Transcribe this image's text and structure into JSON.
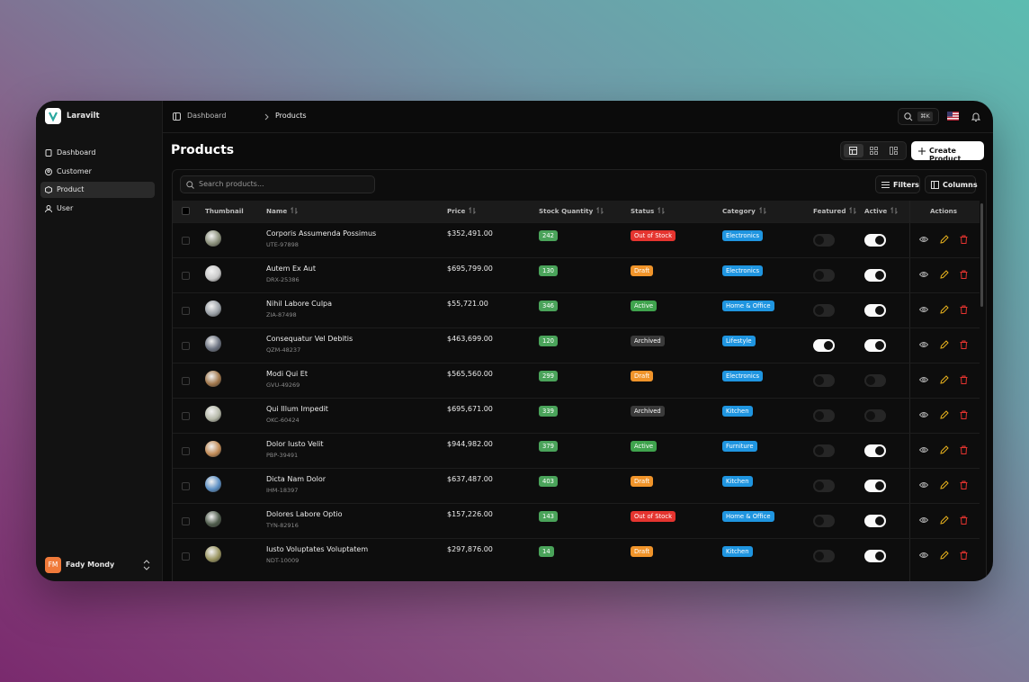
{
  "sidebar": {
    "brand": "Laravilt",
    "nav": [
      {
        "label": "Dashboard",
        "active": false
      },
      {
        "label": "Customer",
        "active": false
      },
      {
        "label": "Product",
        "active": true
      },
      {
        "label": "User",
        "active": false
      }
    ],
    "user": {
      "initials": "FM",
      "name": "Fady Mondy"
    }
  },
  "header": {
    "breadcrumb": [
      "Dashboard",
      "Products"
    ],
    "shortcut": "⌘K"
  },
  "page": {
    "title": "Products",
    "create_button": "Create Product"
  },
  "table": {
    "search_placeholder": "Search products...",
    "filters_button": "Filters",
    "columns_button": "Columns",
    "columns": [
      {
        "label": "Thumbnail",
        "sortable": false
      },
      {
        "label": "Name",
        "sortable": true
      },
      {
        "label": "Price",
        "sortable": true
      },
      {
        "label": "Stock Quantity",
        "sortable": true
      },
      {
        "label": "Status",
        "sortable": true
      },
      {
        "label": "Category",
        "sortable": true
      },
      {
        "label": "Featured",
        "sortable": true
      },
      {
        "label": "Active",
        "sortable": true
      },
      {
        "label": "Actions",
        "sortable": false
      }
    ],
    "rows": [
      {
        "name": "Corporis Assumenda Possimus",
        "sku": "UTE-97898",
        "price": "$352,491.00",
        "stock": 242,
        "status": "Out of Stock",
        "status_color": "#e5342f",
        "category": "Electronics",
        "featured": false,
        "active": true
      },
      {
        "name": "Autem Ex Aut",
        "sku": "DRX-25386",
        "price": "$695,799.00",
        "stock": 130,
        "status": "Draft",
        "status_color": "#f0942a",
        "category": "Electronics",
        "featured": false,
        "active": true
      },
      {
        "name": "Nihil Labore Culpa",
        "sku": "ZIA-87498",
        "price": "$55,721.00",
        "stock": 346,
        "status": "Active",
        "status_color": "#3fa34d",
        "category": "Home & Office",
        "featured": false,
        "active": true
      },
      {
        "name": "Consequatur Vel Debitis",
        "sku": "QZM-48237",
        "price": "$463,699.00",
        "stock": 120,
        "status": "Archived",
        "status_color": "#3a3a3a",
        "category": "Lifestyle",
        "featured": true,
        "active": true
      },
      {
        "name": "Modi Qui Et",
        "sku": "GVU-49269",
        "price": "$565,560.00",
        "stock": 299,
        "status": "Draft",
        "status_color": "#f0942a",
        "category": "Electronics",
        "featured": false,
        "active": false
      },
      {
        "name": "Qui Illum Impedit",
        "sku": "OKC-60424",
        "price": "$695,671.00",
        "stock": 339,
        "status": "Archived",
        "status_color": "#3a3a3a",
        "category": "Kitchen",
        "featured": false,
        "active": false
      },
      {
        "name": "Dolor Iusto Velit",
        "sku": "PBP-39491",
        "price": "$944,982.00",
        "stock": 379,
        "status": "Active",
        "status_color": "#3fa34d",
        "category": "Furniture",
        "featured": false,
        "active": true
      },
      {
        "name": "Dicta Nam Dolor",
        "sku": "IHM-18397",
        "price": "$637,487.00",
        "stock": 403,
        "status": "Draft",
        "status_color": "#f0942a",
        "category": "Kitchen",
        "featured": false,
        "active": true
      },
      {
        "name": "Dolores Labore Optio",
        "sku": "TYN-82916",
        "price": "$157,226.00",
        "stock": 143,
        "status": "Out of Stock",
        "status_color": "#e5342f",
        "category": "Home & Office",
        "featured": false,
        "active": true
      },
      {
        "name": "Iusto Voluptates Voluptatem",
        "sku": "NDT-10009",
        "price": "$297,876.00",
        "stock": 14,
        "status": "Draft",
        "status_color": "#f0942a",
        "category": "Kitchen",
        "featured": false,
        "active": true
      }
    ]
  }
}
